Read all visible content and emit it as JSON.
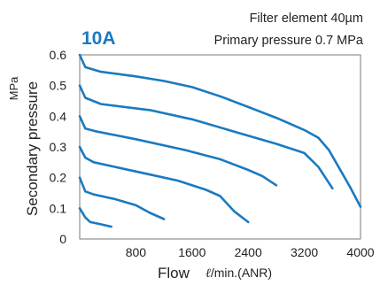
{
  "chart_data": {
    "type": "line",
    "model_label": "10A",
    "conditions": [
      "Filter element 40µm",
      "Primary pressure 0.7 MPa"
    ],
    "xlabel": "Flow",
    "xlabel_unit": "ℓ/min.(ANR)",
    "xlabel_unit_symbol": "ℓ",
    "xlabel_unit_rest": "/min.(ANR)",
    "ylabel": "Secondary pressure",
    "ylabel_unit": "MPa",
    "xlim": [
      0,
      4000
    ],
    "ylim": [
      0,
      0.6
    ],
    "x_ticks": [
      800,
      1600,
      2400,
      3200,
      4000
    ],
    "x_tick_labels": [
      "800",
      "1600",
      "2400",
      "3200",
      "4000"
    ],
    "y_ticks": [
      0,
      0.1,
      0.2,
      0.3,
      0.4,
      0.5,
      0.6
    ],
    "y_tick_labels": [
      "0",
      "0.1",
      "0.2",
      "0.3",
      "0.4",
      "0.5",
      "0.6"
    ],
    "grid": false,
    "line_color": "#1a7ac0",
    "series": [
      {
        "x": [
          0,
          80,
          150,
          300,
          450
        ],
        "y": [
          0.1,
          0.07,
          0.055,
          0.048,
          0.04
        ]
      },
      {
        "x": [
          0,
          80,
          200,
          500,
          800,
          1000,
          1200
        ],
        "y": [
          0.2,
          0.155,
          0.145,
          0.13,
          0.11,
          0.085,
          0.065
        ]
      },
      {
        "x": [
          0,
          80,
          200,
          600,
          1000,
          1400,
          1800,
          2000,
          2200,
          2400
        ],
        "y": [
          0.3,
          0.265,
          0.25,
          0.23,
          0.21,
          0.19,
          0.16,
          0.14,
          0.09,
          0.055
        ]
      },
      {
        "x": [
          0,
          80,
          250,
          800,
          1500,
          2000,
          2400,
          2600,
          2800
        ],
        "y": [
          0.4,
          0.36,
          0.35,
          0.325,
          0.29,
          0.26,
          0.225,
          0.205,
          0.175
        ]
      },
      {
        "x": [
          0,
          80,
          300,
          1000,
          1600,
          2200,
          2800,
          3200,
          3400,
          3600
        ],
        "y": [
          0.5,
          0.46,
          0.44,
          0.42,
          0.39,
          0.35,
          0.31,
          0.28,
          0.235,
          0.165
        ]
      },
      {
        "x": [
          0,
          80,
          300,
          800,
          1200,
          1600,
          2000,
          2400,
          2800,
          3200,
          3400,
          3550,
          3700,
          3850,
          4000
        ],
        "y": [
          0.6,
          0.56,
          0.545,
          0.53,
          0.515,
          0.495,
          0.465,
          0.43,
          0.395,
          0.355,
          0.33,
          0.29,
          0.23,
          0.17,
          0.105
        ]
      }
    ]
  }
}
